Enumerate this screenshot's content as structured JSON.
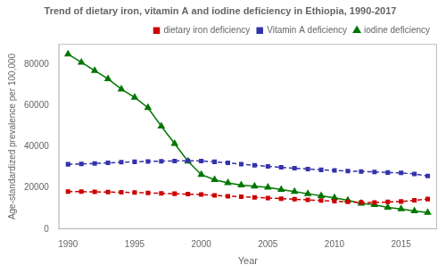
{
  "chart_data": {
    "type": "line",
    "title": "Trend of dietary iron, vitamin A and iodine deficiency in Ethiopia, 1990-2017",
    "xlabel": "Year",
    "ylabel": "Age-standardized prevalence per 100,000",
    "x": [
      1990,
      1991,
      1992,
      1993,
      1994,
      1995,
      1996,
      1997,
      1998,
      1999,
      2000,
      2001,
      2002,
      2003,
      2004,
      2005,
      2006,
      2007,
      2008,
      2009,
      2010,
      2011,
      2012,
      2013,
      2014,
      2015,
      2016,
      2017
    ],
    "series": [
      {
        "name": "dietary iron deficiency",
        "color": "#CC0000",
        "marker": "square",
        "line_style": "dashed",
        "values": [
          18200,
          18200,
          18100,
          18000,
          17900,
          17800,
          17600,
          17400,
          17200,
          17000,
          16800,
          16400,
          16000,
          15700,
          15400,
          15100,
          14800,
          14500,
          14200,
          13900,
          13600,
          13200,
          13000,
          12900,
          13200,
          13400,
          14000,
          14600
        ]
      },
      {
        "name": "Vitamin A deficiency",
        "color": "#3333AA",
        "marker": "square",
        "line_style": "dashed",
        "values": [
          31500,
          31700,
          31900,
          32200,
          32500,
          32700,
          32900,
          33000,
          33100,
          33200,
          33100,
          32700,
          32200,
          31600,
          31000,
          30500,
          30000,
          29600,
          29200,
          28800,
          28500,
          28200,
          28000,
          27800,
          27500,
          27300,
          26800,
          25800
        ]
      },
      {
        "name": "iodine deficiency",
        "color": "#007700",
        "marker": "triangle",
        "line_style": "solid",
        "values": [
          85000,
          81000,
          77000,
          73000,
          68000,
          64000,
          59000,
          50000,
          41500,
          33000,
          26500,
          24000,
          22500,
          21400,
          20800,
          20300,
          19200,
          18200,
          17200,
          16200,
          15200,
          14000,
          12500,
          11800,
          10500,
          9800,
          8800,
          8000
        ]
      }
    ],
    "xlim": [
      1989.3,
      2017.7
    ],
    "xticks": [
      1990,
      1995,
      2000,
      2005,
      2010,
      2015
    ],
    "ylim": [
      0,
      90000
    ],
    "yticks": [
      0,
      20000,
      40000,
      60000,
      80000
    ],
    "grid": false,
    "legend": "upper right"
  }
}
